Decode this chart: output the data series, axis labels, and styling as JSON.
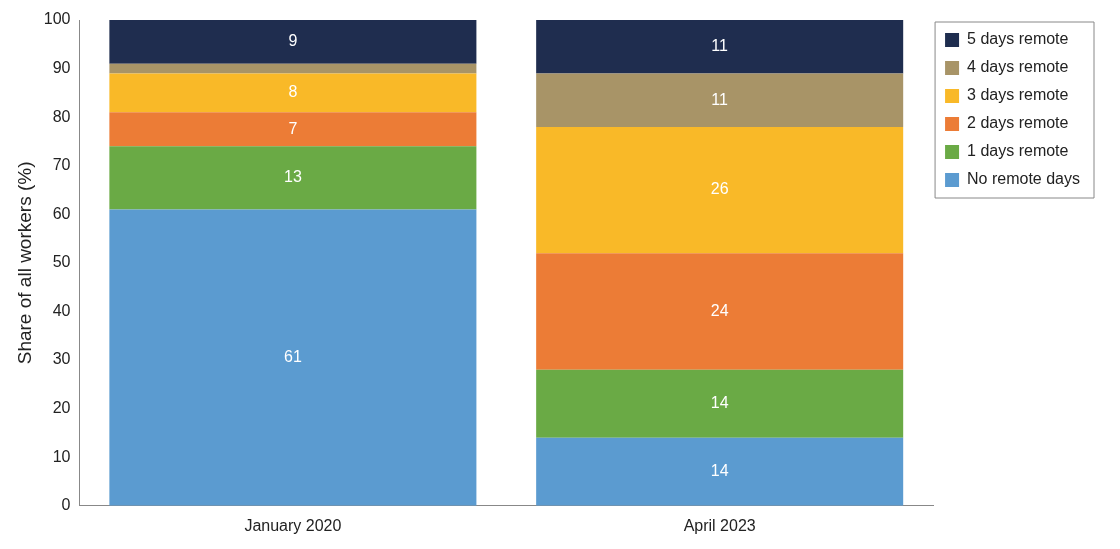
{
  "chart_data": {
    "type": "bar",
    "stacked": true,
    "ylabel": "Share of all workers (%)",
    "categories": [
      "January 2020",
      "April 2023"
    ],
    "series": [
      {
        "name": "No remote days",
        "color": "#5b9bd0",
        "values": [
          61,
          14
        ],
        "value_labels": [
          "61",
          "14"
        ]
      },
      {
        "name": "1 days remote",
        "color": "#6aaa45",
        "values": [
          13,
          14
        ],
        "value_labels": [
          "13",
          "14"
        ]
      },
      {
        "name": "2 days remote",
        "color": "#ec7c36",
        "values": [
          7,
          24
        ],
        "value_labels": [
          "7",
          "24"
        ]
      },
      {
        "name": "3 days remote",
        "color": "#f9b928",
        "values": [
          8,
          26
        ],
        "value_labels": [
          "8",
          "26"
        ]
      },
      {
        "name": "4 days remote",
        "color": "#a89467",
        "values": [
          2,
          11
        ],
        "value_labels": [
          null,
          "11"
        ]
      },
      {
        "name": "5 days remote",
        "color": "#1f2d4f",
        "values": [
          9,
          11
        ],
        "value_labels": [
          "9",
          "11"
        ]
      }
    ],
    "ylim": [
      0,
      100
    ],
    "yticks": [
      0,
      10,
      20,
      30,
      40,
      50,
      60,
      70,
      80,
      90,
      100
    ],
    "grid": false,
    "legend": "top right"
  }
}
